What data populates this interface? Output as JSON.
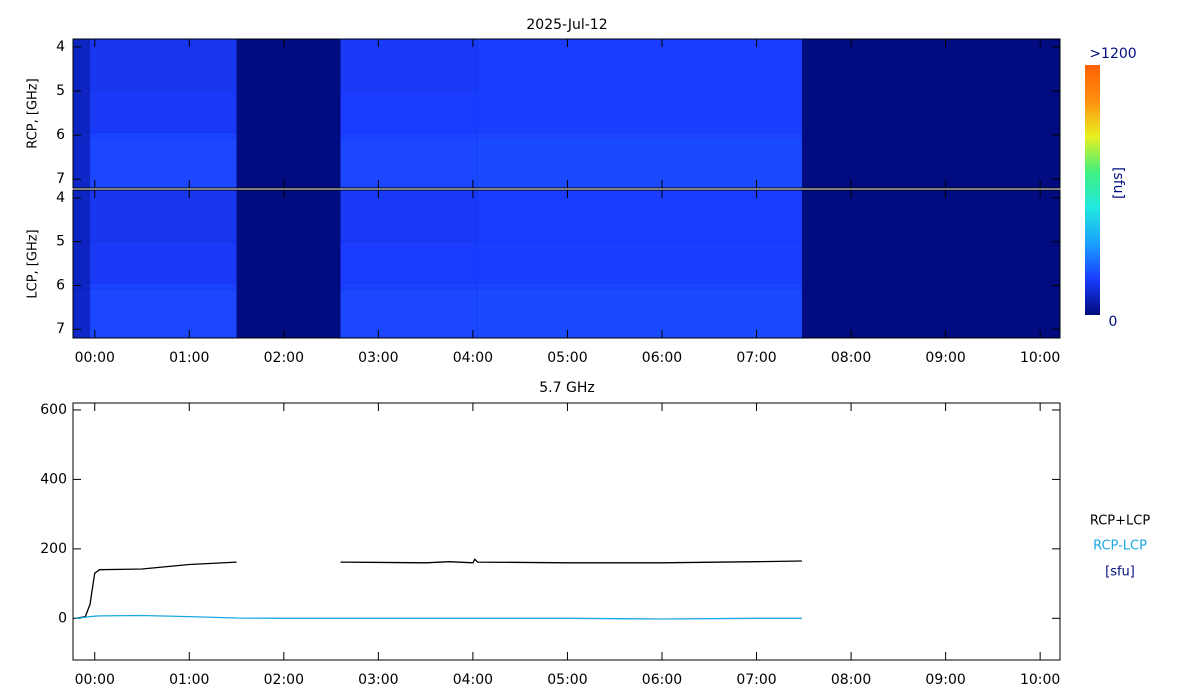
{
  "chart_data": [
    {
      "type": "heatmap",
      "title": "2025-Jul-12",
      "xlim": [
        -0.23,
        10.21
      ],
      "xticks": [
        {
          "value": 0,
          "label": "00:00"
        },
        {
          "value": 1,
          "label": "01:00"
        },
        {
          "value": 2,
          "label": "02:00"
        },
        {
          "value": 3,
          "label": "03:00"
        },
        {
          "value": 4,
          "label": "04:00"
        },
        {
          "value": 5,
          "label": "05:00"
        },
        {
          "value": 6,
          "label": "06:00"
        },
        {
          "value": 7,
          "label": "07:00"
        },
        {
          "value": 8,
          "label": "08:00"
        },
        {
          "value": 9,
          "label": "09:00"
        },
        {
          "value": 10,
          "label": "10:00"
        }
      ],
      "ylim": [
        3.82,
        7.2
      ],
      "y_inverted": true,
      "yticks": [
        4,
        5,
        6,
        7
      ],
      "x_bins": [
        -0.23,
        -0.05,
        1.5,
        2.6,
        4.05,
        7.48,
        10.21
      ],
      "y_bins": [
        3.82,
        5.0,
        5.95,
        6.1,
        7.2
      ],
      "panels": [
        {
          "ylabel": "RCP, [GHz]",
          "values": [
            [
              90,
              150,
              null,
              160,
              170,
              null
            ],
            [
              90,
              160,
              null,
              170,
              175,
              null
            ],
            [
              95,
              180,
              null,
              180,
              185,
              null
            ],
            [
              100,
              190,
              null,
              190,
              195,
              null
            ]
          ]
        },
        {
          "ylabel": "LCP, [GHz]",
          "values": [
            [
              90,
              150,
              null,
              160,
              170,
              null
            ],
            [
              90,
              160,
              null,
              170,
              175,
              null
            ],
            [
              95,
              180,
              null,
              180,
              185,
              null
            ],
            [
              100,
              190,
              null,
              190,
              195,
              null
            ]
          ]
        }
      ],
      "no_data_color": "#000c80",
      "colorbar": {
        "title": "[sfu]",
        "clim": [
          0,
          1200
        ],
        "ticks": [
          {
            "value": 1200,
            "label": ">1200"
          },
          0
        ],
        "colormap": [
          "#000a7a",
          "#1a3cff",
          "#1aa0ff",
          "#20e8e0",
          "#40f080",
          "#e8f020",
          "#ff9010",
          "#ff6000"
        ]
      }
    },
    {
      "type": "line",
      "title": "5.7 GHz",
      "xlim": [
        -0.23,
        10.21
      ],
      "xticks": [
        {
          "value": 0,
          "label": "00:00"
        },
        {
          "value": 1,
          "label": "01:00"
        },
        {
          "value": 2,
          "label": "02:00"
        },
        {
          "value": 3,
          "label": "03:00"
        },
        {
          "value": 4,
          "label": "04:00"
        },
        {
          "value": 5,
          "label": "05:00"
        },
        {
          "value": 6,
          "label": "06:00"
        },
        {
          "value": 7,
          "label": "07:00"
        },
        {
          "value": 8,
          "label": "08:00"
        },
        {
          "value": 9,
          "label": "09:00"
        },
        {
          "value": 10,
          "label": "10:00"
        }
      ],
      "ylim": [
        -120,
        620
      ],
      "yticks": [
        0,
        200,
        400,
        600
      ],
      "x": [
        -0.2,
        -0.1,
        -0.05,
        0,
        0.05,
        0.5,
        1.0,
        1.5,
        2.0,
        2.6,
        3.5,
        3.75,
        4.0,
        4.02,
        4.05,
        5.0,
        6.0,
        7.0,
        7.48
      ],
      "series": [
        {
          "name": "RCP+LCP",
          "color": "#000000",
          "values": [
            0,
            5,
            40,
            130,
            140,
            142,
            155,
            162,
            null,
            162,
            160,
            163,
            160,
            170,
            162,
            160,
            160,
            163,
            165
          ]
        },
        {
          "name": "RCP-LCP",
          "color": "#1aa8e0",
          "values": [
            0,
            3,
            5,
            6,
            7,
            8,
            5,
            1,
            0,
            0,
            0,
            0,
            0,
            0,
            0,
            0,
            -2,
            0,
            0
          ]
        }
      ],
      "unit_label": "[sfu]",
      "unit_color": "#000c80"
    }
  ]
}
